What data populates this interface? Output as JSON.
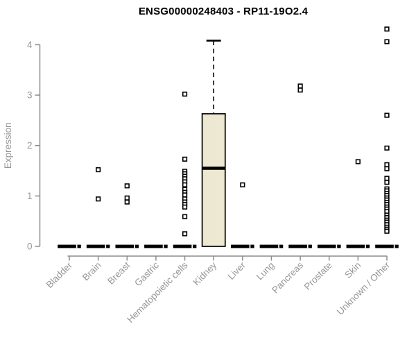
{
  "chart_data": {
    "type": "boxplot",
    "title": "ENSG00000248403 - RP11-19O2.4",
    "ylabel": "Expression",
    "ylim": [
      0,
      4.35
    ],
    "yticks": [
      0,
      1,
      2,
      3,
      4
    ],
    "grid": false,
    "legend": null,
    "colors": {
      "box_fill": "#EDE8D1",
      "box_stroke": "#000000",
      "median": "#000000",
      "axis": "#8C8C8C",
      "tick_label": "#969696",
      "title": "#000000",
      "point_stroke": "#000000",
      "background": "#FFFFFF"
    },
    "categories": [
      "Bladder",
      "Brain",
      "Breast",
      "Gastric",
      "Hematopoietic cells",
      "Kidney",
      "Liver",
      "Lung",
      "Pancreas",
      "Prostate",
      "Skin",
      "Unknown / Other"
    ],
    "boxes": [
      {
        "category": "Bladder",
        "q1": 0,
        "median": 0,
        "q3": 0,
        "whisker_low": 0,
        "whisker_high": 0,
        "outliers": []
      },
      {
        "category": "Brain",
        "q1": 0,
        "median": 0,
        "q3": 0,
        "whisker_low": 0,
        "whisker_high": 0,
        "outliers": [
          1.52,
          0.94
        ]
      },
      {
        "category": "Breast",
        "q1": 0,
        "median": 0,
        "q3": 0,
        "whisker_low": 0,
        "whisker_high": 0,
        "outliers": [
          1.2,
          0.96,
          0.88
        ]
      },
      {
        "category": "Gastric",
        "q1": 0,
        "median": 0,
        "q3": 0,
        "whisker_low": 0,
        "whisker_high": 0,
        "outliers": []
      },
      {
        "category": "Hematopoietic cells",
        "q1": 0,
        "median": 0,
        "q3": 0,
        "whisker_low": 0,
        "whisker_high": 0,
        "outliers": [
          3.02,
          1.73,
          1.49,
          1.44,
          1.39,
          1.34,
          1.28,
          1.22,
          1.13,
          1.07,
          1.02,
          0.94,
          0.88,
          0.83,
          0.78,
          0.59,
          0.25
        ]
      },
      {
        "category": "Kidney",
        "q1": 0,
        "median": 1.55,
        "q3": 2.63,
        "whisker_low": 0,
        "whisker_high": 4.08,
        "outliers": []
      },
      {
        "category": "Liver",
        "q1": 0,
        "median": 0,
        "q3": 0,
        "whisker_low": 0,
        "whisker_high": 0,
        "outliers": [
          1.22
        ]
      },
      {
        "category": "Lung",
        "q1": 0,
        "median": 0,
        "q3": 0,
        "whisker_low": 0,
        "whisker_high": 0,
        "outliers": []
      },
      {
        "category": "Pancreas",
        "q1": 0,
        "median": 0,
        "q3": 0,
        "whisker_low": 0,
        "whisker_high": 0,
        "outliers": [
          3.18,
          3.1
        ]
      },
      {
        "category": "Prostate",
        "q1": 0,
        "median": 0,
        "q3": 0,
        "whisker_low": 0,
        "whisker_high": 0,
        "outliers": []
      },
      {
        "category": "Skin",
        "q1": 0,
        "median": 0,
        "q3": 0,
        "whisker_low": 0,
        "whisker_high": 0,
        "outliers": [
          1.68
        ]
      },
      {
        "category": "Unknown / Other",
        "q1": 0,
        "median": 0,
        "q3": 0,
        "whisker_low": 0,
        "whisker_high": 0,
        "outliers": [
          4.31,
          4.06,
          2.6,
          1.95,
          1.62,
          1.54,
          1.35,
          1.27,
          1.14,
          1.1,
          1.05,
          1.01,
          0.96,
          0.92,
          0.87,
          0.83,
          0.78,
          0.74,
          0.69,
          0.62,
          0.57,
          0.52,
          0.48,
          0.43,
          0.38,
          0.34,
          0.3
        ]
      }
    ]
  }
}
